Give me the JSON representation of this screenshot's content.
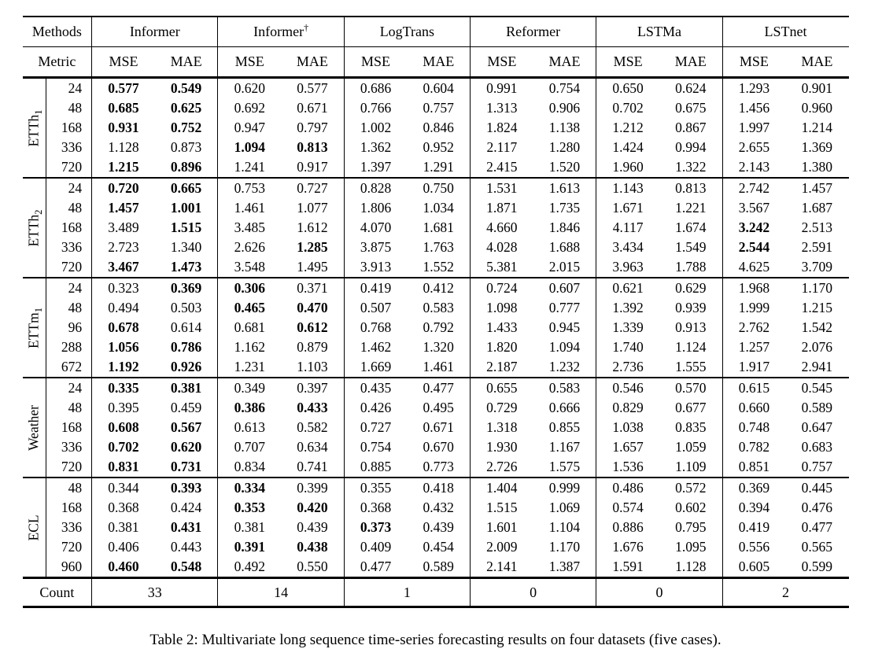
{
  "caption": "Table 2: Multivariate long sequence time-series forecasting results on four datasets (five cases).",
  "table": {
    "methods_label": "Methods",
    "metric_label": "Metric",
    "count_label": "Count",
    "metrics": [
      "MSE",
      "MAE"
    ],
    "methods": [
      {
        "id": "informer",
        "name": "Informer",
        "dagger": false
      },
      {
        "id": "informer-dagger",
        "name": "Informer",
        "dagger": true
      },
      {
        "id": "logtrans",
        "name": "LogTrans",
        "dagger": false
      },
      {
        "id": "reformer",
        "name": "Reformer",
        "dagger": false
      },
      {
        "id": "lstma",
        "name": "LSTMa",
        "dagger": false
      },
      {
        "id": "lstnet",
        "name": "LSTnet",
        "dagger": false
      }
    ],
    "groups": [
      {
        "id": "etth1",
        "label": "ETTh",
        "sub": "1",
        "rows": [
          {
            "horizon": "24",
            "values": [
              "0.577",
              "0.549",
              "0.620",
              "0.577",
              "0.686",
              "0.604",
              "0.991",
              "0.754",
              "0.650",
              "0.624",
              "1.293",
              "0.901"
            ],
            "bold": [
              0,
              1
            ]
          },
          {
            "horizon": "48",
            "values": [
              "0.685",
              "0.625",
              "0.692",
              "0.671",
              "0.766",
              "0.757",
              "1.313",
              "0.906",
              "0.702",
              "0.675",
              "1.456",
              "0.960"
            ],
            "bold": [
              0,
              1
            ]
          },
          {
            "horizon": "168",
            "values": [
              "0.931",
              "0.752",
              "0.947",
              "0.797",
              "1.002",
              "0.846",
              "1.824",
              "1.138",
              "1.212",
              "0.867",
              "1.997",
              "1.214"
            ],
            "bold": [
              0,
              1
            ]
          },
          {
            "horizon": "336",
            "values": [
              "1.128",
              "0.873",
              "1.094",
              "0.813",
              "1.362",
              "0.952",
              "2.117",
              "1.280",
              "1.424",
              "0.994",
              "2.655",
              "1.369"
            ],
            "bold": [
              2,
              3
            ]
          },
          {
            "horizon": "720",
            "values": [
              "1.215",
              "0.896",
              "1.241",
              "0.917",
              "1.397",
              "1.291",
              "2.415",
              "1.520",
              "1.960",
              "1.322",
              "2.143",
              "1.380"
            ],
            "bold": [
              0,
              1
            ]
          }
        ]
      },
      {
        "id": "etth2",
        "label": "ETTh",
        "sub": "2",
        "rows": [
          {
            "horizon": "24",
            "values": [
              "0.720",
              "0.665",
              "0.753",
              "0.727",
              "0.828",
              "0.750",
              "1.531",
              "1.613",
              "1.143",
              "0.813",
              "2.742",
              "1.457"
            ],
            "bold": [
              0,
              1
            ]
          },
          {
            "horizon": "48",
            "values": [
              "1.457",
              "1.001",
              "1.461",
              "1.077",
              "1.806",
              "1.034",
              "1.871",
              "1.735",
              "1.671",
              "1.221",
              "3.567",
              "1.687"
            ],
            "bold": [
              0,
              1
            ]
          },
          {
            "horizon": "168",
            "values": [
              "3.489",
              "1.515",
              "3.485",
              "1.612",
              "4.070",
              "1.681",
              "4.660",
              "1.846",
              "4.117",
              "1.674",
              "3.242",
              "2.513"
            ],
            "bold": [
              1,
              10
            ]
          },
          {
            "horizon": "336",
            "values": [
              "2.723",
              "1.340",
              "2.626",
              "1.285",
              "3.875",
              "1.763",
              "4.028",
              "1.688",
              "3.434",
              "1.549",
              "2.544",
              "2.591"
            ],
            "bold": [
              3,
              10
            ]
          },
          {
            "horizon": "720",
            "values": [
              "3.467",
              "1.473",
              "3.548",
              "1.495",
              "3.913",
              "1.552",
              "5.381",
              "2.015",
              "3.963",
              "1.788",
              "4.625",
              "3.709"
            ],
            "bold": [
              0,
              1
            ]
          }
        ]
      },
      {
        "id": "ettm1",
        "label": "ETTm",
        "sub": "1",
        "rows": [
          {
            "horizon": "24",
            "values": [
              "0.323",
              "0.369",
              "0.306",
              "0.371",
              "0.419",
              "0.412",
              "0.724",
              "0.607",
              "0.621",
              "0.629",
              "1.968",
              "1.170"
            ],
            "bold": [
              1,
              2
            ]
          },
          {
            "horizon": "48",
            "values": [
              "0.494",
              "0.503",
              "0.465",
              "0.470",
              "0.507",
              "0.583",
              "1.098",
              "0.777",
              "1.392",
              "0.939",
              "1.999",
              "1.215"
            ],
            "bold": [
              2,
              3
            ]
          },
          {
            "horizon": "96",
            "values": [
              "0.678",
              "0.614",
              "0.681",
              "0.612",
              "0.768",
              "0.792",
              "1.433",
              "0.945",
              "1.339",
              "0.913",
              "2.762",
              "1.542"
            ],
            "bold": [
              0,
              3
            ]
          },
          {
            "horizon": "288",
            "values": [
              "1.056",
              "0.786",
              "1.162",
              "0.879",
              "1.462",
              "1.320",
              "1.820",
              "1.094",
              "1.740",
              "1.124",
              "1.257",
              "2.076"
            ],
            "bold": [
              0,
              1
            ]
          },
          {
            "horizon": "672",
            "values": [
              "1.192",
              "0.926",
              "1.231",
              "1.103",
              "1.669",
              "1.461",
              "2.187",
              "1.232",
              "2.736",
              "1.555",
              "1.917",
              "2.941"
            ],
            "bold": [
              0,
              1
            ]
          }
        ]
      },
      {
        "id": "weather",
        "label": "Weather",
        "sub": "",
        "rows": [
          {
            "horizon": "24",
            "values": [
              "0.335",
              "0.381",
              "0.349",
              "0.397",
              "0.435",
              "0.477",
              "0.655",
              "0.583",
              "0.546",
              "0.570",
              "0.615",
              "0.545"
            ],
            "bold": [
              0,
              1
            ]
          },
          {
            "horizon": "48",
            "values": [
              "0.395",
              "0.459",
              "0.386",
              "0.433",
              "0.426",
              "0.495",
              "0.729",
              "0.666",
              "0.829",
              "0.677",
              "0.660",
              "0.589"
            ],
            "bold": [
              2,
              3
            ]
          },
          {
            "horizon": "168",
            "values": [
              "0.608",
              "0.567",
              "0.613",
              "0.582",
              "0.727",
              "0.671",
              "1.318",
              "0.855",
              "1.038",
              "0.835",
              "0.748",
              "0.647"
            ],
            "bold": [
              0,
              1
            ]
          },
          {
            "horizon": "336",
            "values": [
              "0.702",
              "0.620",
              "0.707",
              "0.634",
              "0.754",
              "0.670",
              "1.930",
              "1.167",
              "1.657",
              "1.059",
              "0.782",
              "0.683"
            ],
            "bold": [
              0,
              1
            ]
          },
          {
            "horizon": "720",
            "values": [
              "0.831",
              "0.731",
              "0.834",
              "0.741",
              "0.885",
              "0.773",
              "2.726",
              "1.575",
              "1.536",
              "1.109",
              "0.851",
              "0.757"
            ],
            "bold": [
              0,
              1
            ]
          }
        ]
      },
      {
        "id": "ecl",
        "label": "ECL",
        "sub": "",
        "rows": [
          {
            "horizon": "48",
            "values": [
              "0.344",
              "0.393",
              "0.334",
              "0.399",
              "0.355",
              "0.418",
              "1.404",
              "0.999",
              "0.486",
              "0.572",
              "0.369",
              "0.445"
            ],
            "bold": [
              1,
              2
            ]
          },
          {
            "horizon": "168",
            "values": [
              "0.368",
              "0.424",
              "0.353",
              "0.420",
              "0.368",
              "0.432",
              "1.515",
              "1.069",
              "0.574",
              "0.602",
              "0.394",
              "0.476"
            ],
            "bold": [
              2,
              3
            ]
          },
          {
            "horizon": "336",
            "values": [
              "0.381",
              "0.431",
              "0.381",
              "0.439",
              "0.373",
              "0.439",
              "1.601",
              "1.104",
              "0.886",
              "0.795",
              "0.419",
              "0.477"
            ],
            "bold": [
              1,
              4
            ]
          },
          {
            "horizon": "720",
            "values": [
              "0.406",
              "0.443",
              "0.391",
              "0.438",
              "0.409",
              "0.454",
              "2.009",
              "1.170",
              "1.676",
              "1.095",
              "0.556",
              "0.565"
            ],
            "bold": [
              2,
              3
            ]
          },
          {
            "horizon": "960",
            "values": [
              "0.460",
              "0.548",
              "0.492",
              "0.550",
              "0.477",
              "0.589",
              "2.141",
              "1.387",
              "1.591",
              "1.128",
              "0.605",
              "0.599"
            ],
            "bold": [
              0,
              1
            ]
          }
        ]
      }
    ],
    "counts": [
      "33",
      "14",
      "1",
      "0",
      "0",
      "2"
    ]
  }
}
